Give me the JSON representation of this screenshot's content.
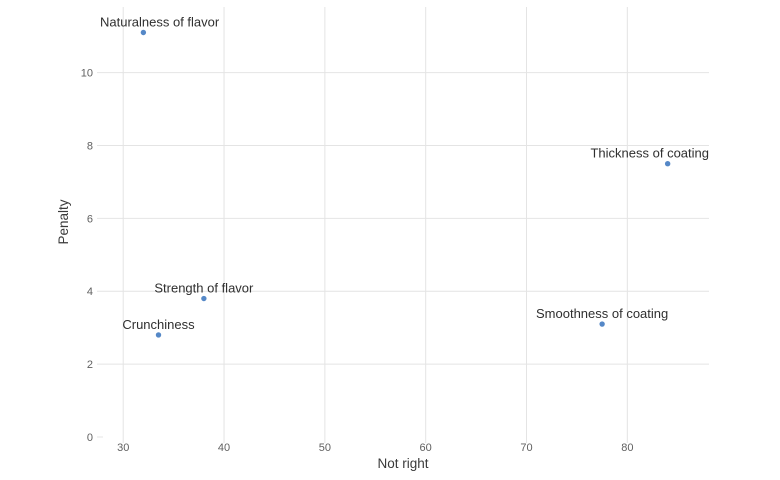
{
  "chart_data": {
    "type": "scatter",
    "title": "",
    "xlabel": "Not right",
    "ylabel": "Penalty",
    "xlim": [
      27.4,
      88.1
    ],
    "ylim": [
      0,
      11.8
    ],
    "x_ticks": [
      30,
      40,
      50,
      60,
      70,
      80
    ],
    "y_ticks": [
      0,
      2,
      4,
      6,
      8,
      10
    ],
    "grid": true,
    "legend": false,
    "points": [
      {
        "label": "Naturalness of flavor",
        "x": 32,
        "y": 11.1
      },
      {
        "label": "Thickness of coating",
        "x": 84,
        "y": 7.5
      },
      {
        "label": "Strength of flavor",
        "x": 38,
        "y": 3.8
      },
      {
        "label": "Crunchiness",
        "x": 33.5,
        "y": 2.8
      },
      {
        "label": "Smoothness of coating",
        "x": 77.5,
        "y": 3.1
      }
    ],
    "colors": {
      "point": "#5588c7",
      "grid": "#e4e4e4",
      "tick_label": "#606060",
      "axis_title": "#3a3a3a",
      "point_label": "#2f2f2f",
      "background": "#ffffff"
    }
  }
}
